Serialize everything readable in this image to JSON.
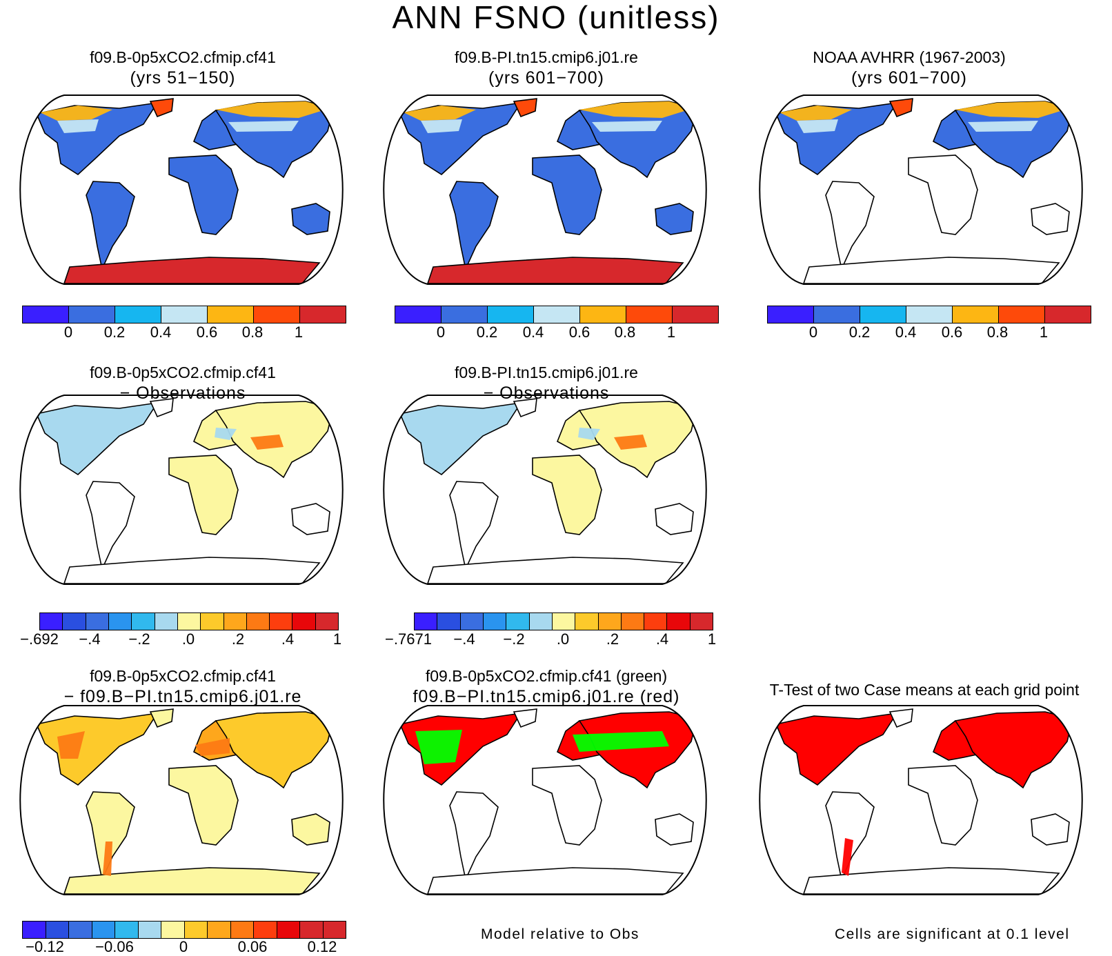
{
  "title": "ANN FSNO (unitless)",
  "palettes": {
    "abs": [
      "#3a1fff",
      "#3a6ee0",
      "#16b6f0",
      "#c5e6f3",
      "#fdb613",
      "#fe4a0a",
      "#d7282c"
    ],
    "diff1": [
      "#3a1fff",
      "#2a4fe0",
      "#3a6ee0",
      "#2a94ef",
      "#31b9ee",
      "#a8d9ef",
      "#fcf7a0",
      "#fdca2b",
      "#fea71c",
      "#fd7a14",
      "#fd3e0e",
      "#e8070a",
      "#d7282c"
    ],
    "diff2": [
      "#3a1fff",
      "#2a4fe0",
      "#3a6ee0",
      "#2a94ef",
      "#31b9ee",
      "#a8d9ef",
      "#fcf7a0",
      "#fdca2b",
      "#fea71c",
      "#fd7a14",
      "#fd3e0e",
      "#e8070a",
      "#d7282c",
      "#d7282c"
    ]
  },
  "panels": {
    "p1": {
      "title1": "f09.B-0p5xCO2.cfmip.cf41",
      "title2": "(yrs 51−150)"
    },
    "p2": {
      "title1": "f09.B-PI.tn15.cmip6.j01.re",
      "title2": "(yrs 601−700)"
    },
    "p3": {
      "title1": "NOAA AVHRR (1967-2003)",
      "title2": "(yrs 601−700)"
    },
    "p4": {
      "title1": "f09.B-0p5xCO2.cfmip.cf41",
      "title2": "− Observations"
    },
    "p5": {
      "title1": "f09.B-PI.tn15.cmip6.j01.re",
      "title2": "− Observations"
    },
    "p7": {
      "title1": "f09.B-0p5xCO2.cfmip.cf41",
      "title2": "− f09.B−PI.tn15.cmip6.j01.re"
    },
    "p8": {
      "title1": "f09.B-0p5xCO2.cfmip.cf41 (green)",
      "title2": "f09.B−PI.tn15.cmip6.j01.re (red)"
    },
    "p9": {
      "title1": "T-Test of two Case means at each grid point"
    }
  },
  "colorbars": {
    "cb1": [
      "0",
      "0.2",
      "0.4",
      "0.6",
      "0.8",
      "1"
    ],
    "cb2": [
      "0",
      "0.2",
      "0.4",
      "0.6",
      "0.8",
      "1"
    ],
    "cb3": [
      "0",
      "0.2",
      "0.4",
      "0.6",
      "0.8",
      "1"
    ],
    "cb4": [
      "−.692",
      "−.4",
      "−.2",
      ".0",
      ".2",
      ".4",
      "1"
    ],
    "cb5": [
      "−.7671",
      "−.4",
      "−.2",
      ".0",
      ".2",
      ".4",
      "1"
    ],
    "cb7": [
      "−0.12",
      "−0.06",
      "0",
      "0.06",
      "0.12"
    ]
  },
  "notes": {
    "model_rel_obs": "Model relative to Obs",
    "significance": "Cells are significant at 0.1 level"
  }
}
